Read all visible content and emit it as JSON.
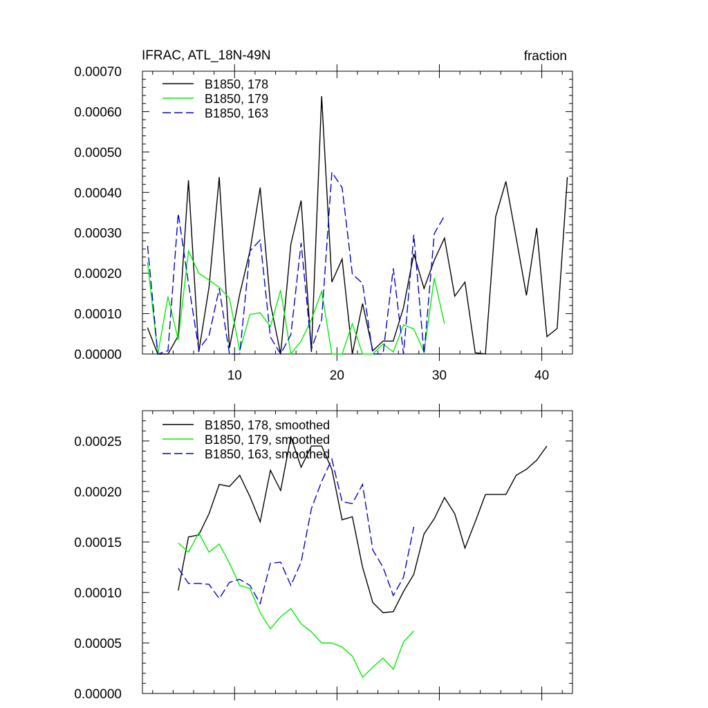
{
  "chart_data": [
    {
      "type": "line",
      "title": "IFRAC, ATL_18N-49N",
      "units_label": "fraction",
      "xlim": [
        1,
        43
      ],
      "ylim": [
        0,
        0.0007
      ],
      "x_ticks": [
        10,
        20,
        30,
        40
      ],
      "x_tick_labels": [
        "10",
        "20",
        "30",
        "40"
      ],
      "y_ticks": [
        0,
        0.0001,
        0.0002,
        0.0003,
        0.0004,
        0.0005,
        0.0006,
        0.0007
      ],
      "y_tick_labels": [
        "0.00000",
        "0.00010",
        "0.00020",
        "0.00030",
        "0.00040",
        "0.00050",
        "0.00060",
        "0.00070"
      ],
      "legend_position": "top-left",
      "series": [
        {
          "name": "B1850, 178",
          "color": "#000000",
          "dash": "solid",
          "x0": 1.5,
          "values": [
            6.5e-05,
            0.0,
            0.0,
            4.5e-05,
            0.00043,
            5e-06,
            0.000165,
            0.000438,
            1.5e-05,
            0.000148,
            0.000255,
            0.000412,
            0.000125,
            0.0,
            0.000272,
            0.00038,
            5e-06,
            0.000638,
            0.000178,
            0.000235,
            0.0,
            0.000125,
            8e-06,
            3.2e-05,
            3.2e-05,
            0.000115,
            0.000248,
            0.000162,
            0.000232,
            0.000287,
            0.000143,
            0.000178,
            3e-06,
            0.0,
            0.00034,
            0.000427,
            0.000288,
            0.000145,
            0.000312,
            4.3e-05,
            6.3e-05,
            0.000438
          ]
        },
        {
          "name": "B1850, 179",
          "color": "#00ee00",
          "dash": "solid",
          "x0": 1.5,
          "values": [
            0.000228,
            0.0,
            0.000142,
            3.5e-05,
            0.000255,
            0.0002,
            0.000183,
            0.000165,
            0.000138,
            8e-06,
            9.8e-05,
            0.000102,
            6.8e-05,
            0.000158,
            0.0,
            3.2e-05,
            8.5e-05,
            0.000155,
            0.0,
            0.0,
            7.5e-05,
            0.0,
            0.0,
            2.5e-05,
            5e-06,
            7.2e-05,
            6.2e-05,
            5e-06,
            0.000188,
            7.5e-05
          ]
        },
        {
          "name": "B1850, 163",
          "color": "#0000cc",
          "dash": "dashed",
          "x0": 1.5,
          "values": [
            0.000268,
            0.0,
            8e-06,
            0.000348,
            0.000175,
            1.2e-05,
            4.5e-05,
            0.000162,
            0.0,
            0.0,
            0.000255,
            0.000282,
            4.2e-05,
            0.0,
            4.8e-05,
            0.000275,
            1.2e-05,
            8.5e-05,
            0.00045,
            0.000412,
            0.000198,
            0.000175,
            0.0,
            0.0,
            0.000212,
            0.0,
            0.000295,
            0.0,
            0.000298,
            0.000342
          ]
        }
      ]
    },
    {
      "type": "line",
      "title": "",
      "xlim": [
        1,
        43
      ],
      "ylim": [
        0,
        0.00028
      ],
      "x_ticks": [
        10,
        20,
        30,
        40
      ],
      "x_tick_labels": [],
      "y_ticks": [
        0,
        5e-05,
        0.0001,
        0.00015,
        0.0002,
        0.00025
      ],
      "y_tick_labels": [
        "0.00000",
        "0.00005",
        "0.00010",
        "0.00015",
        "0.00020",
        "0.00025"
      ],
      "legend_position": "top-left",
      "series": [
        {
          "name": "B1850, 178, smoothed",
          "color": "#000000",
          "dash": "solid",
          "x0": 4.5,
          "values": [
            0.000102,
            0.000155,
            0.000157,
            0.000178,
            0.000207,
            0.000205,
            0.000216,
            0.000195,
            0.00017,
            0.000221,
            0.000201,
            0.000254,
            0.000224,
            0.000245,
            0.000245,
            0.000222,
            0.000172,
            0.000175,
            0.000125,
            9e-05,
            8e-05,
            8.1e-05,
            0.000101,
            0.000118,
            0.000158,
            0.000173,
            0.000194,
            0.000178,
            0.000144,
            0.00017,
            0.000197,
            0.000197,
            0.000197,
            0.000216,
            0.000222,
            0.000231,
            0.000245
          ]
        },
        {
          "name": "B1850, 179, smoothed",
          "color": "#00ee00",
          "dash": "solid",
          "x0": 4.5,
          "values": [
            0.000149,
            0.00014,
            0.000159,
            0.00014,
            0.000148,
            0.000129,
            0.000107,
            0.000104,
            8e-05,
            6.4e-05,
            7.6e-05,
            8.4e-05,
            6.9e-05,
            6.1e-05,
            5e-05,
            5e-05,
            4.6e-05,
            3.7e-05,
            1.6e-05,
            2.6e-05,
            3.5e-05,
            2.4e-05,
            5.1e-05,
            6.2e-05
          ]
        },
        {
          "name": "B1850, 163, smoothed",
          "color": "#0000cc",
          "dash": "dashed",
          "x0": 4.5,
          "values": [
            0.000124,
            0.000109,
            0.000109,
            0.000108,
            9.4e-05,
            0.00011,
            0.000113,
            0.000107,
            8.9e-05,
            0.000129,
            0.00013,
            0.000107,
            0.00013,
            0.000183,
            0.00021,
            0.000232,
            0.00019,
            0.000188,
            0.000207,
            0.000142,
            0.000125,
            9.7e-05,
            0.000115,
            0.000165
          ]
        }
      ]
    }
  ]
}
